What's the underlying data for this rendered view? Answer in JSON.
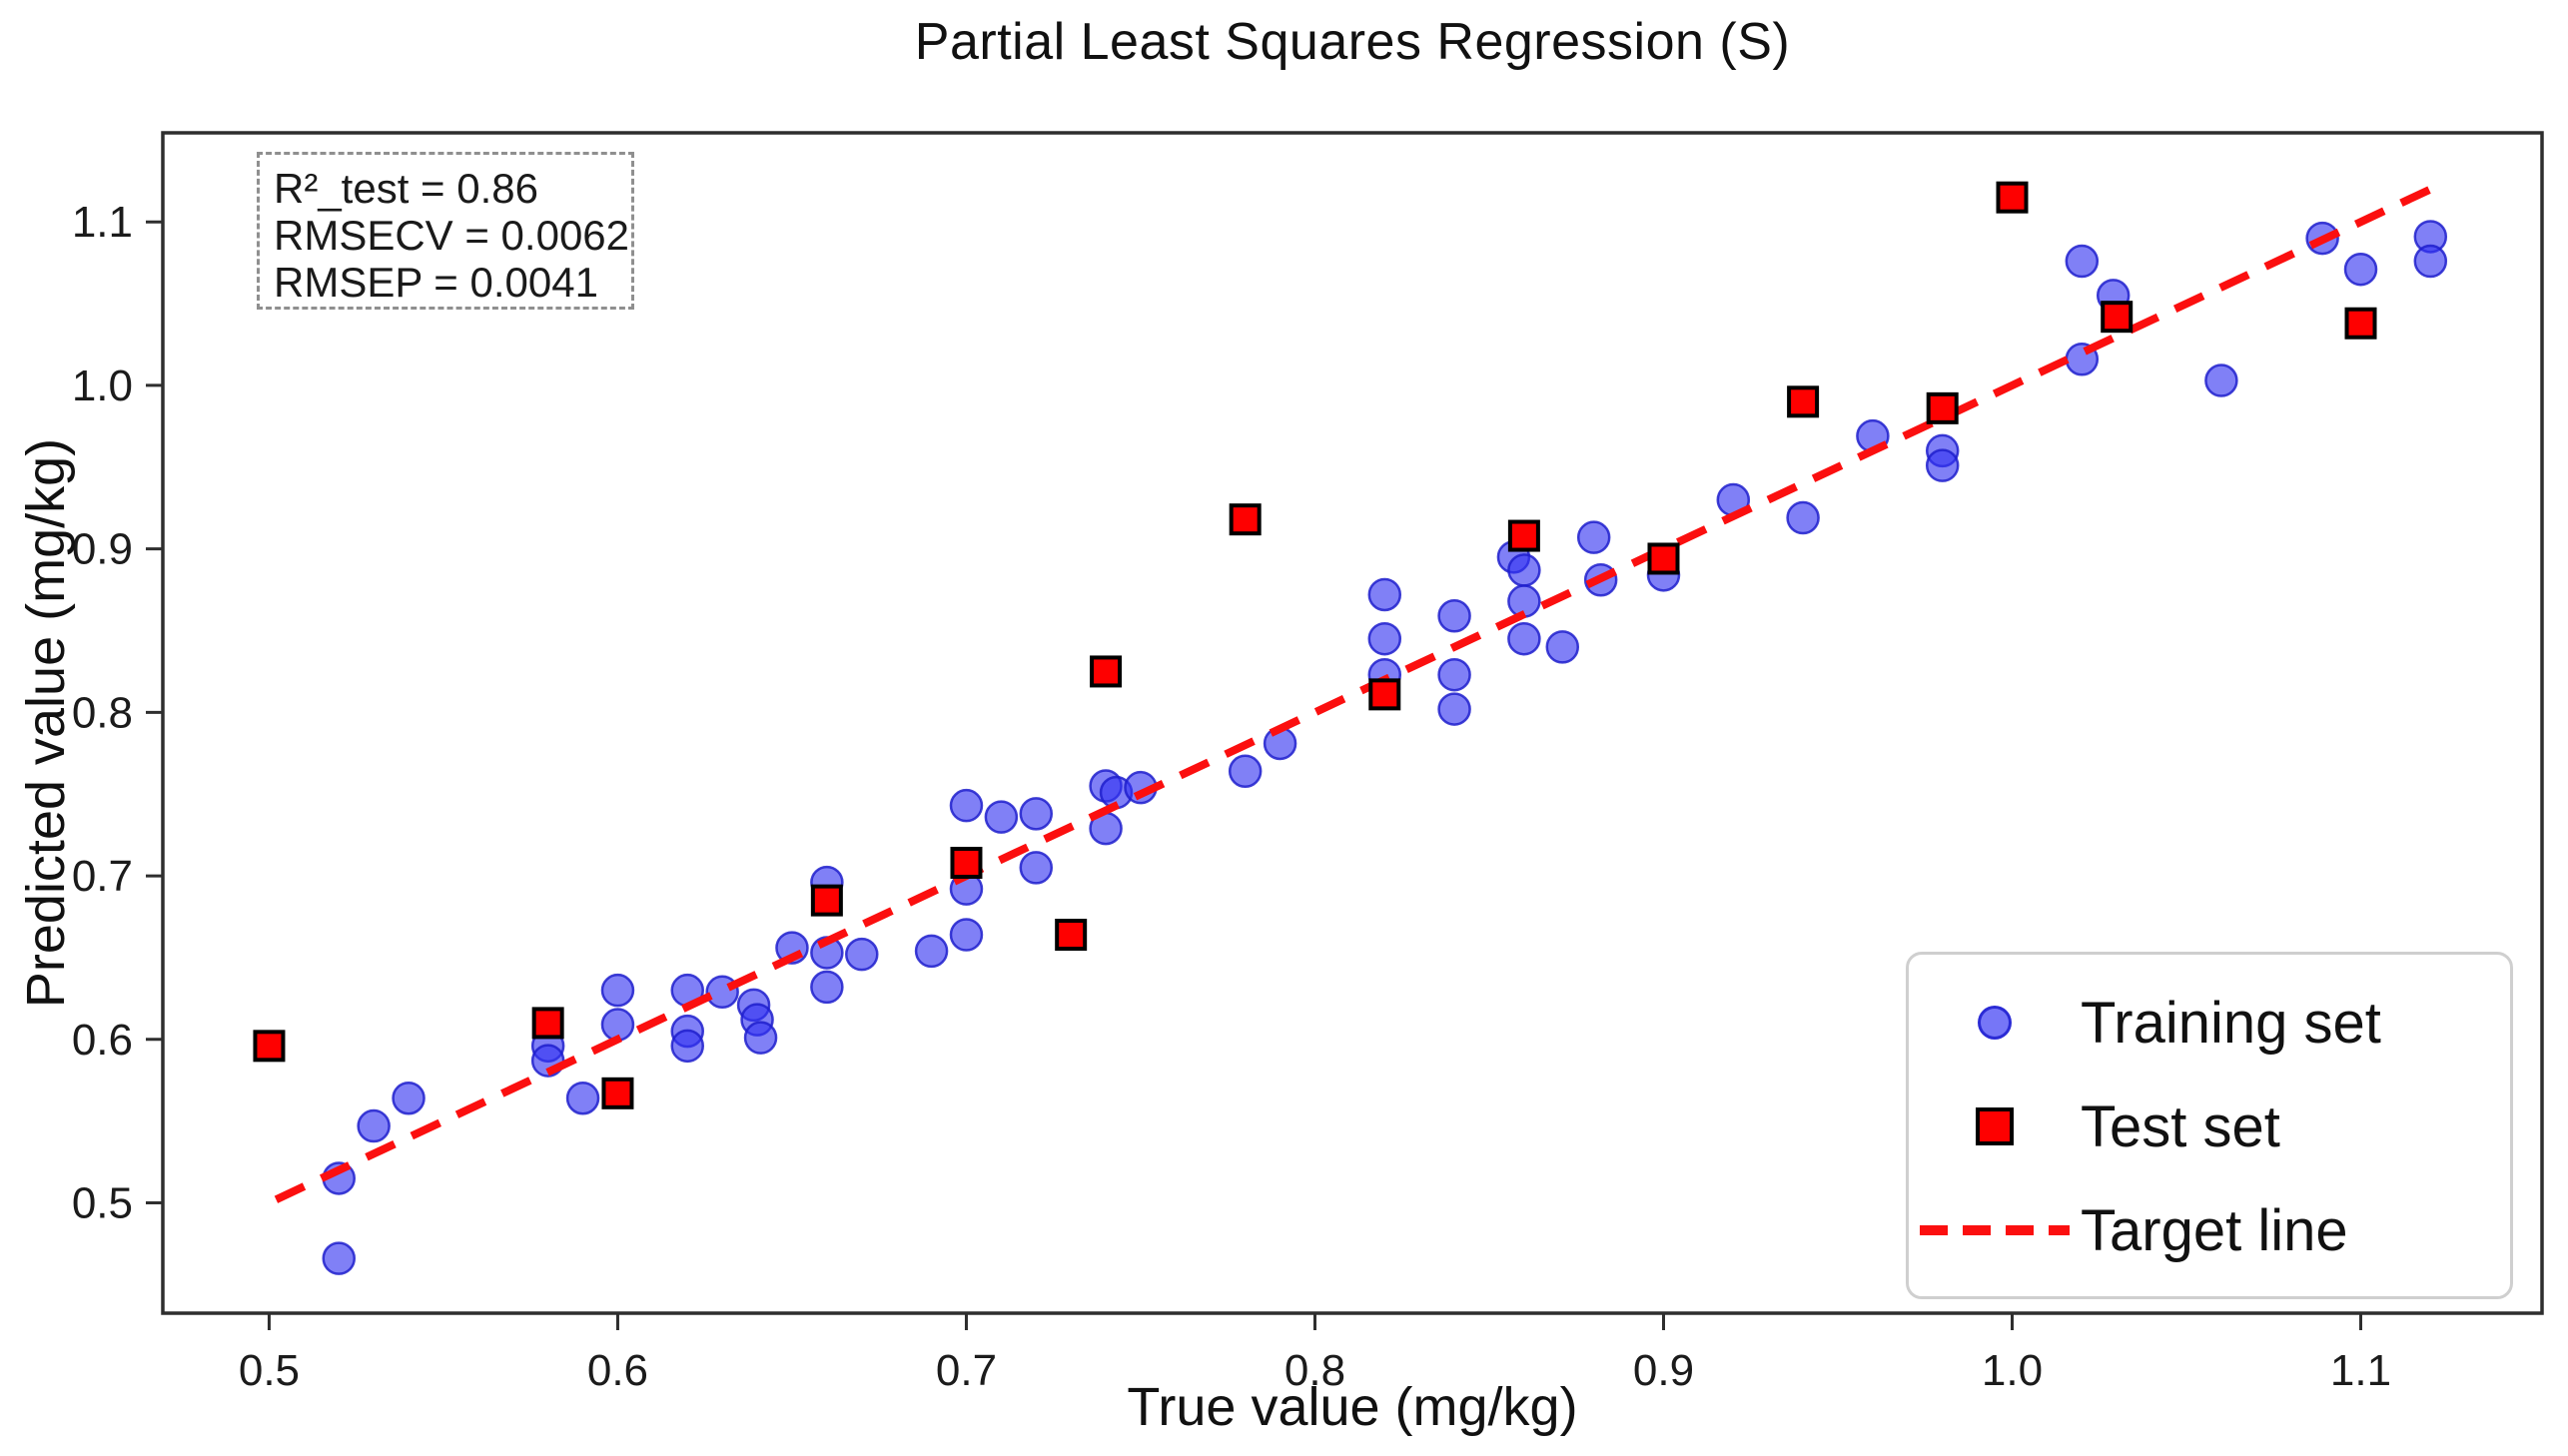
{
  "chart_data": {
    "type": "scatter",
    "title": "Partial Least Squares Regression (S)",
    "xlabel": "True value (mg/kg)",
    "ylabel": "Predicted value (mg/kg)",
    "xlim": [
      0.4695,
      1.152
    ],
    "ylim": [
      0.4325,
      1.1545
    ],
    "x_ticks": [
      0.5,
      0.6,
      0.7,
      0.8,
      0.9,
      1.0,
      1.1
    ],
    "y_ticks": [
      0.5,
      0.6,
      0.7,
      0.8,
      0.9,
      1.0,
      1.1
    ],
    "grid": false,
    "legend_position": "lower right",
    "annotation": [
      "R²_test = 0.86",
      "RMSECV = 0.0062",
      "RMSEP = 0.0041"
    ],
    "series": [
      {
        "name": "Training set",
        "type": "scatter",
        "marker": "circle",
        "color": "#3232f0",
        "opacity": 0.62,
        "points": [
          [
            0.52,
            0.466
          ],
          [
            0.52,
            0.515
          ],
          [
            0.53,
            0.547
          ],
          [
            0.54,
            0.564
          ],
          [
            0.58,
            0.596
          ],
          [
            0.58,
            0.587
          ],
          [
            0.59,
            0.564
          ],
          [
            0.6,
            0.63
          ],
          [
            0.6,
            0.609
          ],
          [
            0.62,
            0.63
          ],
          [
            0.62,
            0.605
          ],
          [
            0.62,
            0.596
          ],
          [
            0.63,
            0.629
          ],
          [
            0.639,
            0.621
          ],
          [
            0.64,
            0.612
          ],
          [
            0.641,
            0.601
          ],
          [
            0.65,
            0.656
          ],
          [
            0.66,
            0.696
          ],
          [
            0.66,
            0.653
          ],
          [
            0.67,
            0.652
          ],
          [
            0.66,
            0.632
          ],
          [
            0.69,
            0.654
          ],
          [
            0.7,
            0.664
          ],
          [
            0.7,
            0.692
          ],
          [
            0.7,
            0.743
          ],
          [
            0.71,
            0.736
          ],
          [
            0.72,
            0.738
          ],
          [
            0.72,
            0.705
          ],
          [
            0.74,
            0.755
          ],
          [
            0.743,
            0.751
          ],
          [
            0.75,
            0.754
          ],
          [
            0.74,
            0.729
          ],
          [
            0.78,
            0.764
          ],
          [
            0.79,
            0.781
          ],
          [
            0.82,
            0.872
          ],
          [
            0.82,
            0.845
          ],
          [
            0.82,
            0.823
          ],
          [
            0.84,
            0.859
          ],
          [
            0.84,
            0.823
          ],
          [
            0.84,
            0.802
          ],
          [
            0.857,
            0.895
          ],
          [
            0.86,
            0.887
          ],
          [
            0.86,
            0.868
          ],
          [
            0.86,
            0.845
          ],
          [
            0.871,
            0.84
          ],
          [
            0.88,
            0.907
          ],
          [
            0.882,
            0.881
          ],
          [
            0.9,
            0.884
          ],
          [
            0.92,
            0.93
          ],
          [
            0.94,
            0.919
          ],
          [
            0.96,
            0.969
          ],
          [
            0.98,
            0.96
          ],
          [
            0.98,
            0.951
          ],
          [
            1.02,
            1.076
          ],
          [
            1.029,
            1.055
          ],
          [
            1.02,
            1.016
          ],
          [
            1.06,
            1.003
          ],
          [
            1.089,
            1.09
          ],
          [
            1.1,
            1.071
          ],
          [
            1.12,
            1.091
          ],
          [
            1.12,
            1.076
          ]
        ]
      },
      {
        "name": "Test set",
        "type": "scatter",
        "marker": "square",
        "color": "#fe0000",
        "edge_color": "#000000",
        "points": [
          [
            0.5,
            0.596
          ],
          [
            0.58,
            0.61
          ],
          [
            0.6,
            0.567
          ],
          [
            0.66,
            0.685
          ],
          [
            0.7,
            0.708
          ],
          [
            0.73,
            0.664
          ],
          [
            0.74,
            0.825
          ],
          [
            0.78,
            0.918
          ],
          [
            0.82,
            0.811
          ],
          [
            0.86,
            0.908
          ],
          [
            0.9,
            0.894
          ],
          [
            0.94,
            0.99
          ],
          [
            0.98,
            0.986
          ],
          [
            1.0,
            1.115
          ],
          [
            1.03,
            1.042
          ],
          [
            1.1,
            1.038
          ]
        ]
      },
      {
        "name": "Target line",
        "type": "line",
        "style": "dashed",
        "color": "#fb0f0f",
        "from": [
          0.502,
          0.502
        ],
        "to": [
          1.121,
          1.121
        ]
      }
    ]
  }
}
